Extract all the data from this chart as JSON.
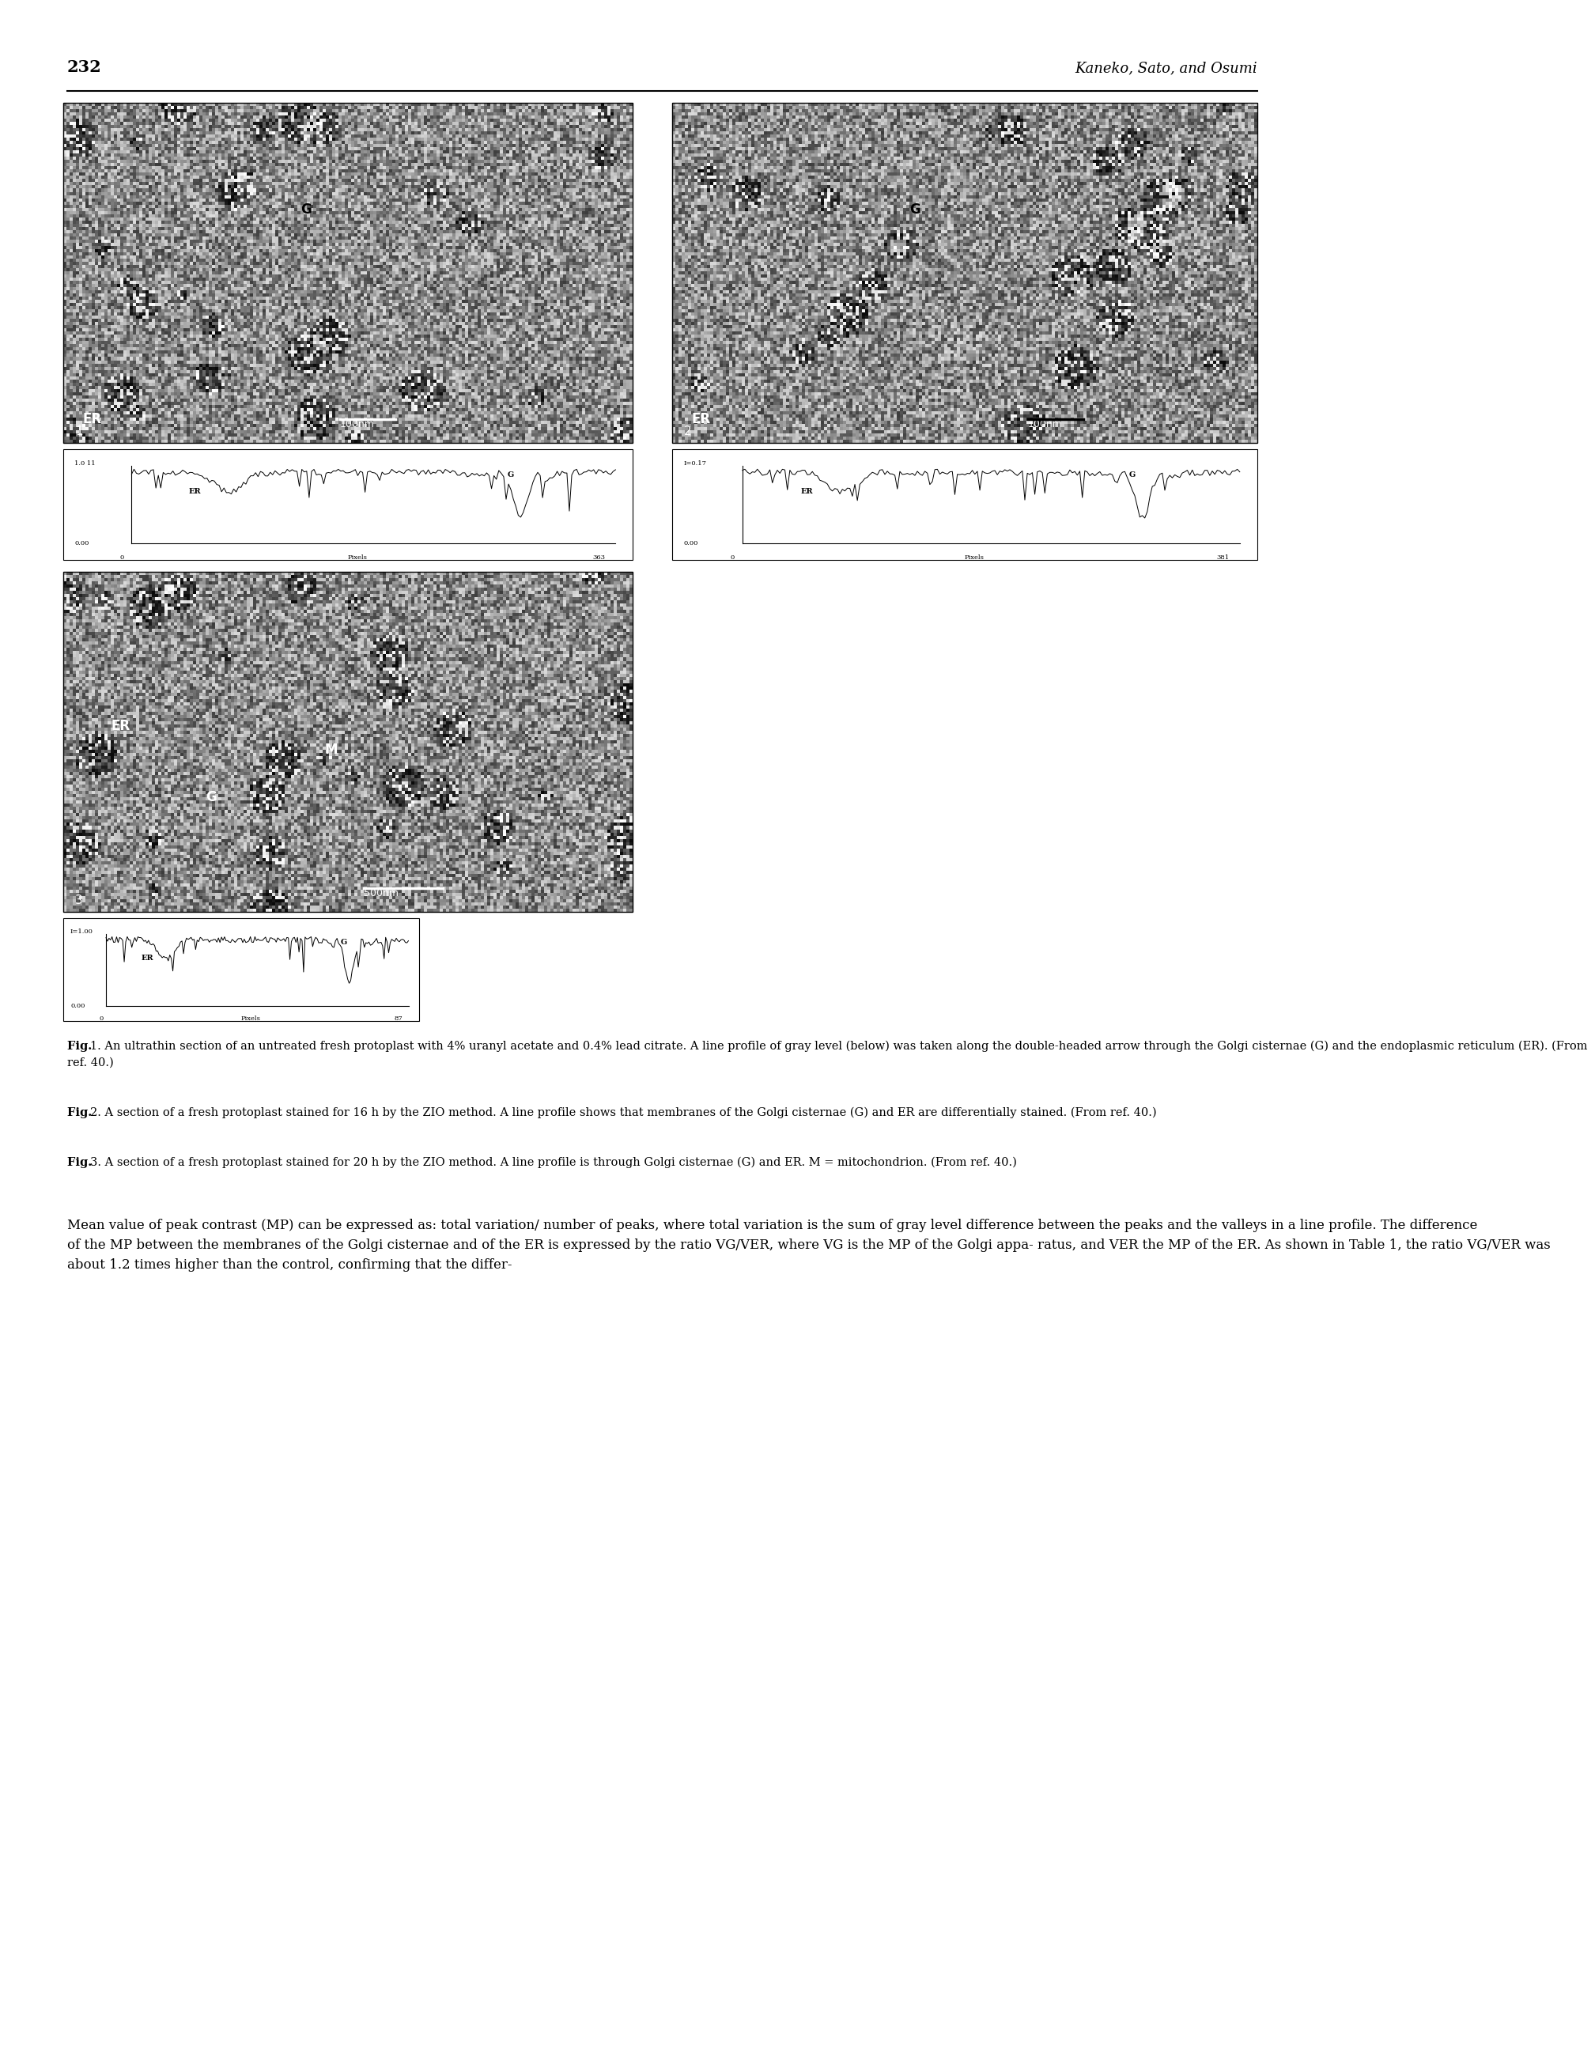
{
  "page_number": "232",
  "header_right": "Kaneko, Sato, and Osumi",
  "fig_caption_1": "Fig. 1. An ultrathin section of an untreated fresh protoplast with 4% uranyl acetate and 0.4% lead citrate. A line profile of gray level (below) was taken along the double-headed arrow through the Golgi cisternae (G) and the endoplasmic reticulum (ER). (From ref. 40.)",
  "fig_caption_2": "Fig. 2. A section of a fresh protoplast stained for 16 h by the ZIO method. A line profile shows that membranes of the Golgi cisternae (G) and ER are differentially stained. (From ref. 40.)",
  "fig_caption_3": "Fig. 3. A section of a fresh protoplast stained for 20 h by the ZIO method. A line profile is through Golgi cisternae (G) and ER. M = mitochondrion. (From ref. 40.)",
  "body_text": "Mean value of peak contrast (MP) can be expressed as: total variation/\nnumber of peaks, where total variation is the sum of gray level difference\nbetween the peaks and the valleys in a line profile. The difference of\nthe MP between the membranes of the Golgi cisternae and of the ER is\nexpressed by the ratio VG/VER, where VG is the MP of the Golgi appa-\nratus, and VER the MP of the ER. As shown in Table 1, the ratio VG/VER\nwas about 1.2 times higher than the control, confirming that the differ-",
  "background_color": "#ffffff",
  "text_color": "#000000",
  "header_fontsize": 13,
  "caption_fontsize": 10.5,
  "body_fontsize": 12
}
